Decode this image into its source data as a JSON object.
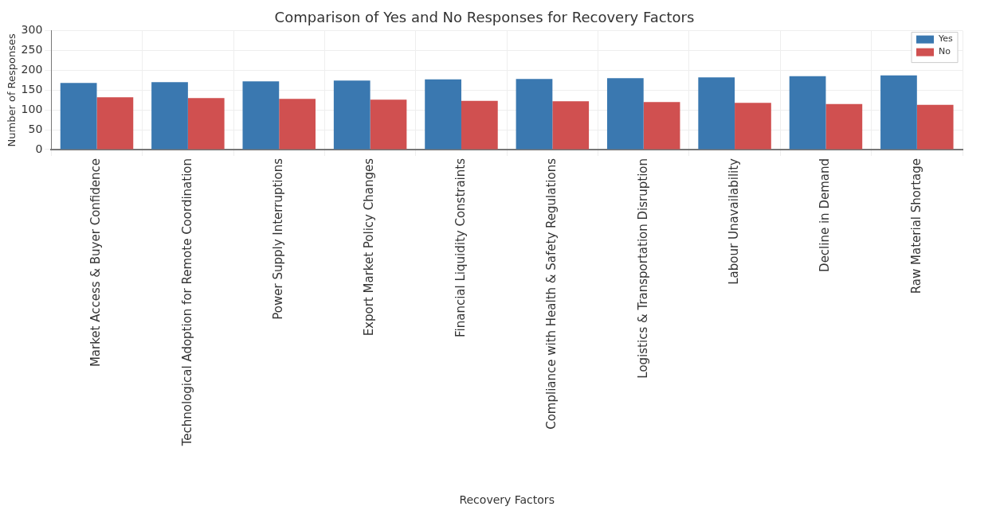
{
  "chart_data": {
    "type": "bar",
    "title": "Comparison of Yes and No Responses for Recovery Factors",
    "xlabel": "Recovery Factors",
    "ylabel": "Number of Responses",
    "categories": [
      "Market Access & Buyer Confidence",
      "Technological Adoption for Remote Coordination",
      "Power Supply Interruptions",
      "Export Market Policy Changes",
      "Financial Liquidity Constraints",
      "Compliance with Health & Safety Regulations",
      "Logistics & Transportation Disruption",
      "Labour Unavailability",
      "Decline in Demand",
      "Raw Material Shortage"
    ],
    "series": [
      {
        "name": "Yes",
        "color": "#3a78b0",
        "values": [
          168,
          170,
          172,
          174,
          177,
          178,
          180,
          182,
          185,
          187
        ]
      },
      {
        "name": "No",
        "color": "#d05050",
        "values": [
          132,
          130,
          128,
          126,
          123,
          122,
          120,
          118,
          115,
          113
        ]
      }
    ],
    "ylim": [
      0,
      300
    ],
    "yticks": [
      0,
      50,
      100,
      150,
      200,
      250,
      300
    ],
    "grid": true,
    "legend": "top right"
  }
}
